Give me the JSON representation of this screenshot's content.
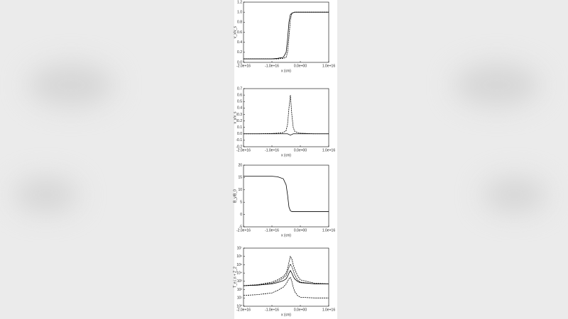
{
  "chart_data": [
    {
      "type": "line",
      "x_label": "x (cm)",
      "y_label": "v_x/v_s",
      "x": [
        -2e+16,
        -1.5e+16,
        -1e+16,
        -8000000000000000.0,
        -6000000000000000.0,
        -5000000000000000.0,
        -4500000000000000.0,
        -4000000000000000.0,
        -3500000000000000.0,
        -3000000000000000.0,
        -2500000000000000.0,
        -2000000000000000.0,
        -1000000000000000.0,
        0,
        5000000000000000.0,
        1e+16
      ],
      "xlim": [
        -2e+16,
        1e+16
      ],
      "xticks": [
        {
          "value": -2e+16,
          "label": "-2.0e+16"
        },
        {
          "value": -1e+16,
          "label": "-1.0e+16"
        },
        {
          "value": 0,
          "label": "0.0e+00"
        },
        {
          "value": 1e+16,
          "label": "1.0e+16"
        }
      ],
      "ylim": [
        0,
        1.2
      ],
      "yticks": [
        {
          "value": 0,
          "label": "0.0"
        },
        0.2,
        0.4,
        0.6,
        0.8,
        {
          "value": 1,
          "label": "1.0"
        },
        1.2
      ],
      "series": [
        {
          "color": "#000000",
          "dash": false,
          "values": [
            0.07,
            0.07,
            0.07,
            0.08,
            0.1,
            0.2,
            0.45,
            0.8,
            0.95,
            0.98,
            0.99,
            1.0,
            1.0,
            1.0,
            1.0,
            1.0
          ]
        },
        {
          "color": "#000000",
          "dash": true,
          "values": [
            0.07,
            0.07,
            0.07,
            0.07,
            0.08,
            0.1,
            0.2,
            0.5,
            0.85,
            0.97,
            0.99,
            1.0,
            1.0,
            1.0,
            1.0,
            1.0
          ]
        }
      ]
    },
    {
      "type": "line",
      "x_label": "x (cm)",
      "y_label": "v_y/v_s",
      "x": [
        -2e+16,
        -1.5e+16,
        -1e+16,
        -8000000000000000.0,
        -6000000000000000.0,
        -5000000000000000.0,
        -4500000000000000.0,
        -4000000000000000.0,
        -3500000000000000.0,
        -3000000000000000.0,
        -2500000000000000.0,
        -2000000000000000.0,
        -1000000000000000.0,
        0,
        5000000000000000.0,
        1e+16
      ],
      "xlim": [
        -2e+16,
        1e+16
      ],
      "xticks": [
        {
          "value": -2e+16,
          "label": "-2.0e+16"
        },
        {
          "value": -1e+16,
          "label": "-1.0e+16"
        },
        {
          "value": 0,
          "label": "0.0e+00"
        },
        {
          "value": 1e+16,
          "label": "1.0e+16"
        }
      ],
      "ylim": [
        -0.2,
        0.7
      ],
      "yticks": [
        -0.2,
        -0.1,
        {
          "value": 0,
          "label": "0.0"
        },
        0.1,
        0.2,
        0.3,
        0.4,
        0.5,
        0.6,
        0.7
      ],
      "series": [
        {
          "color": "#000000",
          "dash": true,
          "values": [
            0,
            0,
            0.005,
            0.01,
            0.02,
            0.05,
            0.15,
            0.4,
            0.6,
            0.3,
            0.1,
            0.04,
            0.02,
            0.01,
            0,
            0
          ]
        },
        {
          "color": "#000000",
          "dash": false,
          "values": [
            0,
            0,
            0,
            0,
            0,
            0,
            0,
            -0.01,
            -0.02,
            -0.01,
            0,
            0,
            0,
            0,
            0,
            0
          ]
        }
      ]
    },
    {
      "type": "line",
      "x_label": "x (cm)",
      "y_label": "B_y/B_0",
      "x": [
        -2e+16,
        -1.5e+16,
        -1e+16,
        -8000000000000000.0,
        -6000000000000000.0,
        -5000000000000000.0,
        -4500000000000000.0,
        -4000000000000000.0,
        -3500000000000000.0,
        -3000000000000000.0,
        -2500000000000000.0,
        -2000000000000000.0,
        -1000000000000000.0,
        0,
        5000000000000000.0,
        1e+16
      ],
      "xlim": [
        -2e+16,
        1e+16
      ],
      "xticks": [
        {
          "value": -2e+16,
          "label": "-2.0e+16"
        },
        {
          "value": -1e+16,
          "label": "-1.0e+16"
        },
        {
          "value": 0,
          "label": "0.0e+00"
        },
        {
          "value": 1e+16,
          "label": "1.0e+16"
        }
      ],
      "ylim": [
        -5,
        20
      ],
      "yticks": [
        -5,
        0,
        5,
        10,
        15,
        20
      ],
      "series": [
        {
          "color": "#000000",
          "dash": false,
          "values": [
            15.5,
            15.5,
            15.5,
            15.3,
            14.5,
            12,
            8,
            3,
            1.5,
            1.2,
            1.2,
            1.2,
            1.2,
            1.2,
            1.2,
            1.2
          ]
        }
      ]
    },
    {
      "type": "line",
      "x_label": "x (cm)",
      "y_label": "T_e,i,n + Z_2",
      "log_y": true,
      "x": [
        -2e+16,
        -1.5e+16,
        -1e+16,
        -8000000000000000.0,
        -6000000000000000.0,
        -5000000000000000.0,
        -4500000000000000.0,
        -4000000000000000.0,
        -3500000000000000.0,
        -3000000000000000.0,
        -2500000000000000.0,
        -2000000000000000.0,
        -1000000000000000.0,
        0,
        5000000000000000.0,
        1e+16
      ],
      "xlim": [
        -2e+16,
        1e+16
      ],
      "xticks": [
        {
          "value": -2e+16,
          "label": "-2.0e+16"
        },
        {
          "value": -1e+16,
          "label": "-1.0e+16"
        },
        {
          "value": 0,
          "label": "0.0e+00"
        },
        {
          "value": 1e+16,
          "label": "1.0e+16"
        }
      ],
      "ylim": [
        1,
        10000000
      ],
      "yticks": [
        {
          "value": 1,
          "label": "10⁰"
        },
        {
          "value": 10,
          "label": "10¹"
        },
        {
          "value": 100,
          "label": "10²"
        },
        {
          "value": 1000,
          "label": "10³"
        },
        {
          "value": 10000,
          "label": "10⁴"
        },
        {
          "value": 100000,
          "label": "10⁵"
        },
        {
          "value": 1000000,
          "label": "10⁶"
        },
        {
          "value": 10000000,
          "label": "10⁷"
        }
      ],
      "series": [
        {
          "color": "#000000",
          "dash": true,
          "values": [
            300,
            400,
            800,
            1500,
            4000,
            10000,
            30000,
            200000,
            1000000,
            500000,
            100000,
            30000,
            5000,
            1500,
            600,
            500
          ]
        },
        {
          "color": "#000000",
          "dash": false,
          "values": [
            300,
            350,
            500,
            700,
            1200,
            2000,
            4000,
            10000,
            20000,
            10000,
            4000,
            2000,
            1000,
            700,
            500,
            500
          ]
        },
        {
          "color": "#000000",
          "dash": true,
          "values": [
            300,
            350,
            600,
            1000,
            2500,
            5000,
            15000,
            50000,
            120000,
            60000,
            20000,
            6000,
            1500,
            800,
            500,
            500
          ]
        },
        {
          "color": "#000000",
          "dash": true,
          "values": [
            20,
            25,
            40,
            80,
            200,
            500,
            1000,
            2000,
            3000,
            1000,
            200,
            60,
            20,
            12,
            10,
            10
          ]
        }
      ]
    }
  ]
}
